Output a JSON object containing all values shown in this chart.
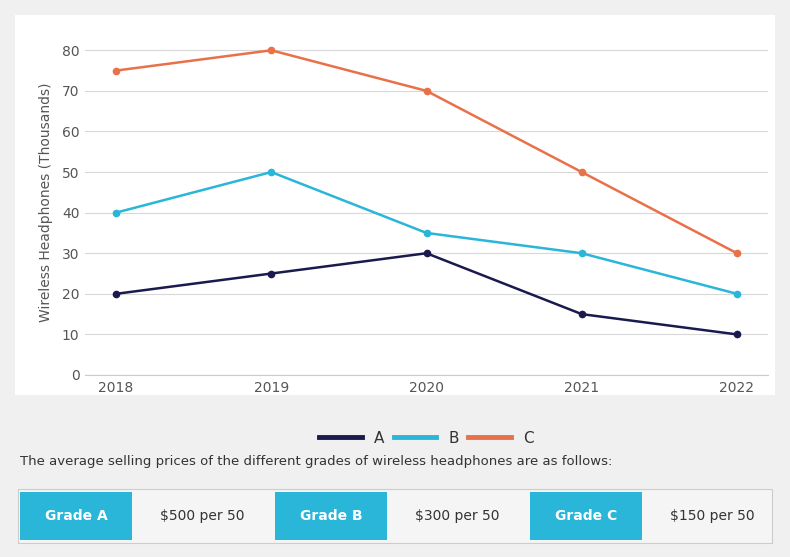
{
  "years": [
    2018,
    2019,
    2020,
    2021,
    2022
  ],
  "series_A": [
    20,
    25,
    30,
    15,
    10
  ],
  "series_B": [
    40,
    50,
    35,
    30,
    20
  ],
  "series_C": [
    75,
    80,
    70,
    50,
    30
  ],
  "color_A": "#1a1a4e",
  "color_B": "#29b6d8",
  "color_C": "#e8714a",
  "ylabel": "Wireless Headphones (Thousands)",
  "ylim": [
    0,
    85
  ],
  "yticks": [
    0,
    10,
    20,
    30,
    40,
    50,
    60,
    70,
    80
  ],
  "background_color": "#ffffff",
  "grid_color": "#d8d8d8",
  "legend_labels": [
    "A",
    "B",
    "C"
  ],
  "annotation_text": "The average selling prices of the different grades of wireless headphones are as follows:",
  "grade_labels": [
    "Grade A",
    "Grade B",
    "Grade C"
  ],
  "grade_prices": [
    "$500 per 50",
    "$300 per 50",
    "$150 per 50"
  ],
  "grade_button_color": "#29b6d8",
  "grade_button_text_color": "#ffffff",
  "grade_price_text_color": "#333333",
  "outer_bg": "#f0f0f0"
}
